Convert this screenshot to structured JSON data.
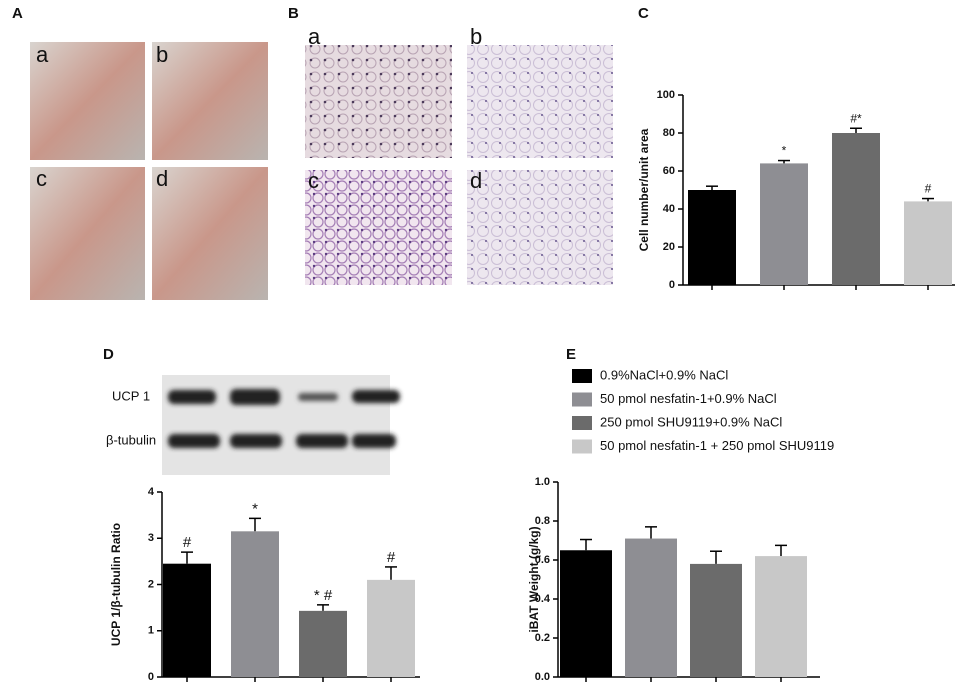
{
  "panels": {
    "A": {
      "label": "A",
      "images": [
        "a",
        "b",
        "c",
        "d"
      ]
    },
    "B": {
      "label": "B",
      "images": [
        "a",
        "b",
        "c",
        "d"
      ]
    },
    "D_blot": [
      "UCP 1",
      "β-tubulin"
    ]
  },
  "chart_data": [
    {
      "type": "bar",
      "panel": "C",
      "ylabel": "Cell number/unit area",
      "ylim": [
        0,
        100
      ],
      "yticks": [
        0,
        20,
        40,
        60,
        80,
        100
      ],
      "values": [
        50,
        64,
        80,
        44
      ],
      "errors": [
        2,
        1.5,
        2.5,
        1.5
      ],
      "annotations": [
        null,
        "*",
        "#*",
        "#"
      ],
      "colors": [
        "#000000",
        "#8e8e93",
        "#6b6b6b",
        "#c8c8c8"
      ]
    },
    {
      "type": "bar",
      "panel": "D",
      "ylabel": "UCP 1/β-tubulin Ratio",
      "ylim": [
        0,
        4
      ],
      "yticks": [
        0,
        1,
        2,
        3,
        4
      ],
      "values": [
        2.45,
        3.15,
        1.43,
        2.1
      ],
      "errors": [
        0.25,
        0.28,
        0.13,
        0.28
      ],
      "annotations": [
        "#",
        "*",
        "* #",
        "#"
      ],
      "colors": [
        "#000000",
        "#8e8e93",
        "#6b6b6b",
        "#c8c8c8"
      ]
    },
    {
      "type": "bar",
      "panel": "E",
      "ylabel": "iBAT Weight (g/kg)",
      "ylim": [
        0,
        1.0
      ],
      "yticks": [
        {
          "value": 0,
          "label": "0.0"
        },
        {
          "value": 0.2,
          "label": "0.2"
        },
        {
          "value": 0.4,
          "label": "0.4"
        },
        {
          "value": 0.6,
          "label": "0.6"
        },
        {
          "value": 0.8,
          "label": "0.8"
        },
        {
          "value": 1.0,
          "label": "1.0"
        }
      ],
      "values": [
        0.65,
        0.71,
        0.58,
        0.62
      ],
      "errors": [
        0.055,
        0.06,
        0.065,
        0.055
      ],
      "legend": [
        "0.9%NaCl+0.9% NaCl",
        "50 pmol nesfatin-1+0.9% NaCl",
        "250 pmol SHU9119+0.9% NaCl",
        "50 pmol nesfatin-1 + 250 pmol SHU9119"
      ],
      "colors": [
        "#000000",
        "#8e8e93",
        "#6b6b6b",
        "#c8c8c8"
      ]
    }
  ]
}
